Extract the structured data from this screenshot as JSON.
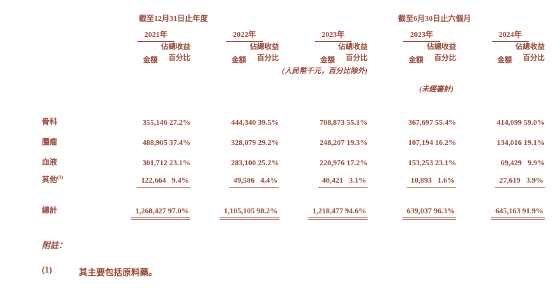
{
  "page": {
    "background": "#ffffff",
    "text_color": "#9e4838"
  },
  "table": {
    "header": {
      "annual_span": "截至12月31日止年度",
      "interim_span": "截至6月30日止六個月",
      "currency_note": "(人民幣千元，百分比除外)",
      "unaudited_note": "(未經審計)",
      "col_groups": [
        {
          "year": "2021年",
          "amount_label": "金額",
          "pct_line1": "佔總收益",
          "pct_line2": "百分比"
        },
        {
          "year": "2022年",
          "amount_label": "金額",
          "pct_line1": "佔總收益",
          "pct_line2": "百分比"
        },
        {
          "year": "2023年",
          "amount_label": "金額",
          "pct_line1": "佔總收益",
          "pct_line2": "百分比"
        },
        {
          "year": "2023年",
          "amount_label": "金額",
          "pct_line1": "佔總收益",
          "pct_line2": "百分比"
        },
        {
          "year": "2024年",
          "amount_label": "金額",
          "pct_line1": "佔總收益",
          "pct_line2": "百分比"
        }
      ]
    },
    "rows": [
      {
        "label": "骨科",
        "values": [
          "355,146",
          "27.2%",
          "444,340",
          "39.5%",
          "708,873",
          "55.1%",
          "367,697",
          "55.4%",
          "414,099",
          "59.0%"
        ]
      },
      {
        "label": "腫瘤",
        "values": [
          "488,905",
          "37.4%",
          "328,079",
          "29.2%",
          "248,207",
          "19.3%",
          "107,194",
          "16.2%",
          "134,016",
          "19.1%"
        ]
      },
      {
        "label": "血液",
        "values": [
          "301,712",
          "23.1%",
          "283,100",
          "25.2%",
          "220,976",
          "17.2%",
          "153,253",
          "23.1%",
          "69,429",
          "9.9%"
        ]
      },
      {
        "label": "其他",
        "label_sup": "(1)",
        "rule": true,
        "values": [
          "122,664",
          "9.4%",
          "49,586",
          "4.4%",
          "40,421",
          "3.1%",
          "10,893",
          "1.6%",
          "27,619",
          "3.9%"
        ]
      }
    ],
    "total_row": {
      "label": "總計",
      "values": [
        "1,268,427",
        "97.0%",
        "1,105,105",
        "98.2%",
        "1,218,477",
        "94.6%",
        "639,037",
        "96.3%",
        "645,163",
        "91.9%"
      ]
    }
  },
  "footnotes": {
    "heading": "附註：",
    "items": [
      {
        "marker": "(1)",
        "text": "其主要包括原料藥。"
      }
    ]
  }
}
